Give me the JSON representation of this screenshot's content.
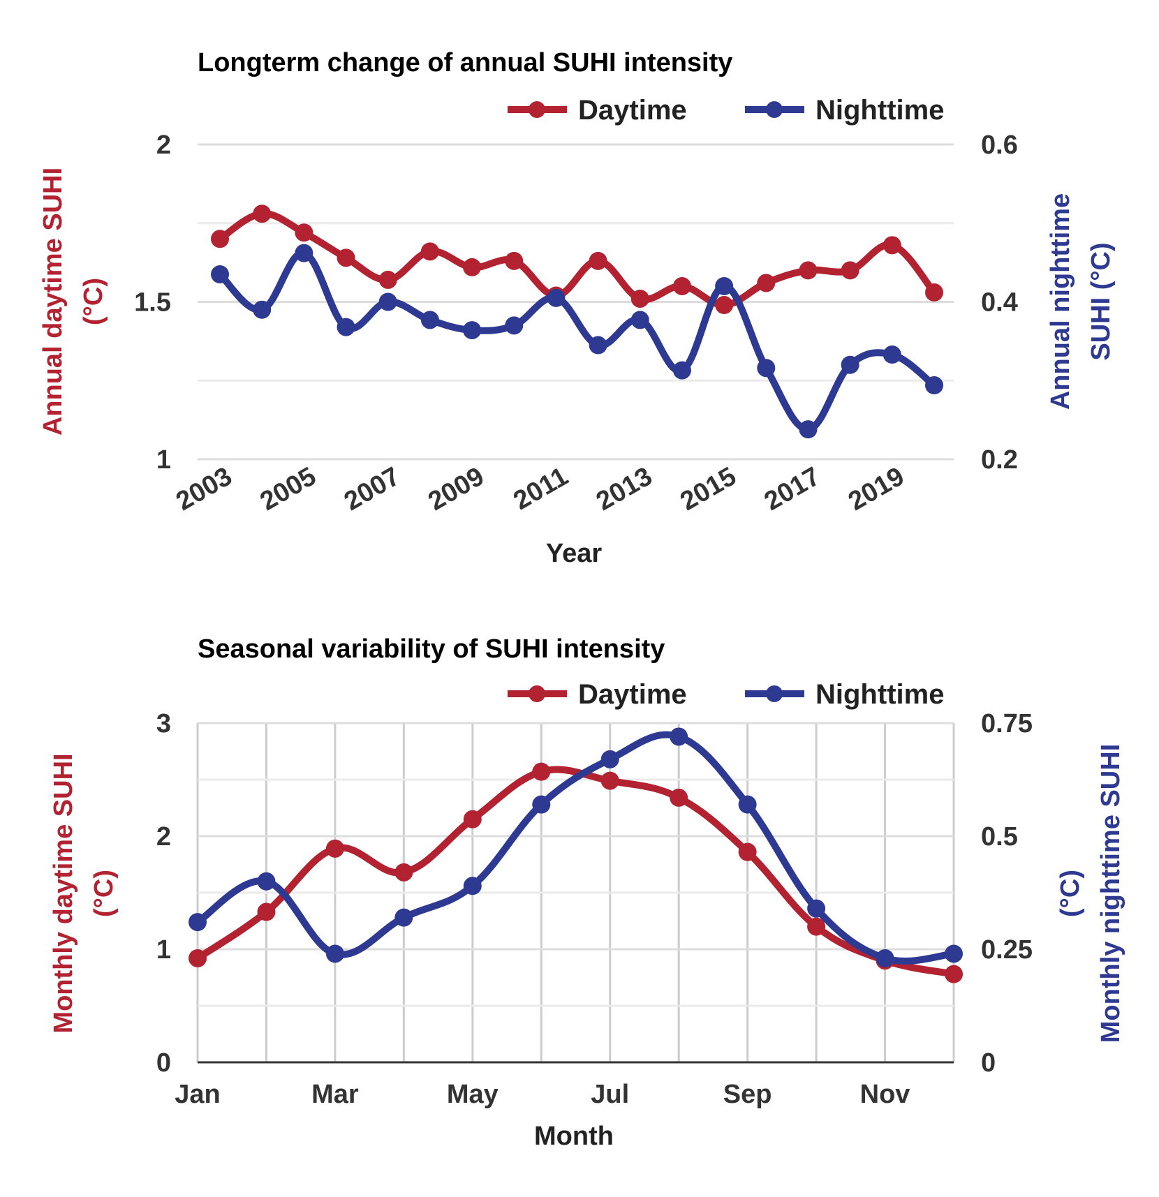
{
  "chart_data": [
    {
      "type": "line",
      "title": "Longterm change of annual SUHI intensity",
      "xlabel": "Year",
      "ylabel_left": "Annual daytime SUHI (°C)",
      "ylabel_right": "Annual nighttime SUHI (°C)",
      "x": [
        2003,
        2004,
        2005,
        2006,
        2007,
        2008,
        2009,
        2010,
        2011,
        2012,
        2013,
        2014,
        2015,
        2016,
        2017,
        2018,
        2019,
        2020
      ],
      "x_tick_labels": [
        "2003",
        "2005",
        "2007",
        "2009",
        "2011",
        "2013",
        "2015",
        "2017",
        "2019"
      ],
      "y_ticks_left": [
        "1",
        "1.5",
        "2"
      ],
      "y_ticks_right": [
        "0.2",
        "0.4",
        "0.6"
      ],
      "ylim_left": [
        1,
        2
      ],
      "ylim_right": [
        0.2,
        0.6
      ],
      "grid": "horizontal",
      "legend_position": "top-right",
      "series": [
        {
          "name": "Daytime",
          "axis": "left",
          "color": "#b22230",
          "values": [
            1.7,
            1.78,
            1.72,
            1.64,
            1.57,
            1.66,
            1.61,
            1.63,
            1.52,
            1.63,
            1.51,
            1.55,
            1.49,
            1.56,
            1.6,
            1.6,
            1.68,
            1.53
          ]
        },
        {
          "name": "Nighttime",
          "axis": "right",
          "color": "#2e3a92",
          "values": [
            0.435,
            0.39,
            0.462,
            0.368,
            0.4,
            0.377,
            0.364,
            0.37,
            0.405,
            0.345,
            0.377,
            0.313,
            0.42,
            0.316,
            0.238,
            0.32,
            0.333,
            0.294
          ]
        }
      ]
    },
    {
      "type": "line",
      "title": "Seasonal variability of SUHI intensity",
      "xlabel": "Month",
      "ylabel_left": "Monthly daytime SUHI (°C)",
      "ylabel_right": "Monthly nighttime SUHI (°C)",
      "categories": [
        "Jan",
        "Feb",
        "Mar",
        "Apr",
        "May",
        "Jun",
        "Jul",
        "Aug",
        "Sep",
        "Oct",
        "Nov",
        "Dec"
      ],
      "x_tick_labels": [
        "Jan",
        "Mar",
        "May",
        "Jul",
        "Sep",
        "Nov"
      ],
      "y_ticks_left": [
        "0",
        "1",
        "2",
        "3"
      ],
      "y_ticks_right": [
        "0",
        "0.25",
        "0.5",
        "0.75"
      ],
      "ylim_left": [
        0,
        3
      ],
      "ylim_right": [
        0,
        0.75
      ],
      "grid": "both",
      "legend_position": "top-right",
      "series": [
        {
          "name": "Daytime",
          "axis": "left",
          "color": "#b22230",
          "values": [
            0.92,
            1.33,
            1.89,
            1.68,
            2.15,
            2.57,
            2.49,
            2.34,
            1.86,
            1.2,
            0.9,
            0.78
          ]
        },
        {
          "name": "Nighttime",
          "axis": "right",
          "color": "#2e3a92",
          "values": [
            0.31,
            0.4,
            0.24,
            0.32,
            0.39,
            0.57,
            0.67,
            0.72,
            0.57,
            0.34,
            0.23,
            0.24
          ]
        }
      ]
    }
  ]
}
